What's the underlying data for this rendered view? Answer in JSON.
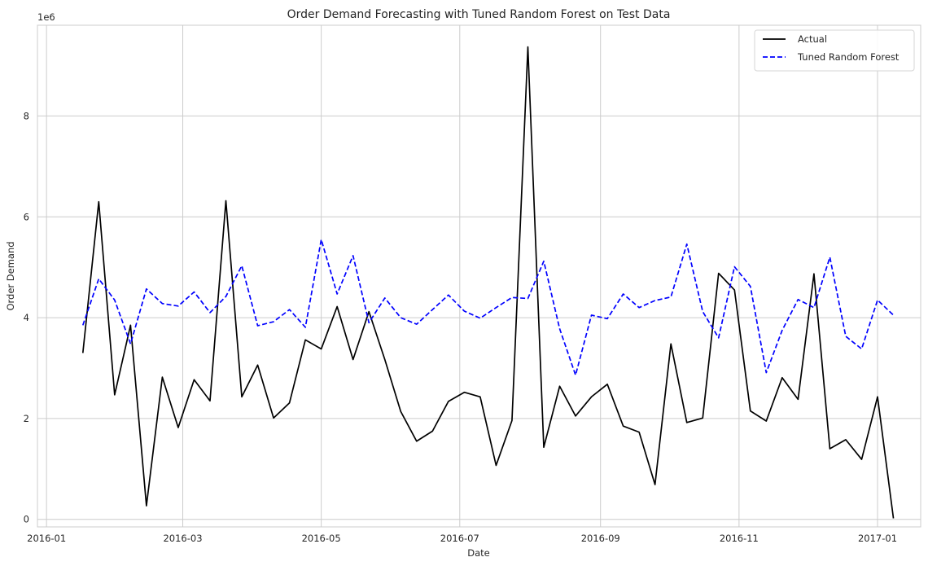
{
  "chart_data": {
    "type": "line",
    "title": "Order Demand Forecasting with Tuned Random Forest on Test Data",
    "xlabel": "Date",
    "ylabel": "Order Demand",
    "y_offset_text": "1e6",
    "xlim": [
      "2015-12-28",
      "2017-01-20"
    ],
    "ylim": [
      -0.15,
      9.8
    ],
    "y_scale_factor": 1000000,
    "x_ticks": [
      {
        "date": "2016-01-01",
        "label": "2016-01"
      },
      {
        "date": "2016-03-01",
        "label": "2016-03"
      },
      {
        "date": "2016-05-01",
        "label": "2016-05"
      },
      {
        "date": "2016-07-01",
        "label": "2016-07"
      },
      {
        "date": "2016-09-01",
        "label": "2016-09"
      },
      {
        "date": "2016-11-01",
        "label": "2016-11"
      },
      {
        "date": "2017-01-01",
        "label": "2017-01"
      }
    ],
    "y_ticks": [
      {
        "value": 0,
        "label": "0"
      },
      {
        "value": 2,
        "label": "2"
      },
      {
        "value": 4,
        "label": "4"
      },
      {
        "value": 6,
        "label": "6"
      },
      {
        "value": 8,
        "label": "8"
      }
    ],
    "grid": true,
    "legend": "top-right",
    "x": [
      "2016-01-17",
      "2016-01-24",
      "2016-01-31",
      "2016-02-07",
      "2016-02-14",
      "2016-02-21",
      "2016-02-28",
      "2016-03-06",
      "2016-03-13",
      "2016-03-20",
      "2016-03-27",
      "2016-04-03",
      "2016-04-10",
      "2016-04-17",
      "2016-04-24",
      "2016-05-01",
      "2016-05-08",
      "2016-05-15",
      "2016-05-22",
      "2016-05-29",
      "2016-06-05",
      "2016-06-12",
      "2016-06-19",
      "2016-06-26",
      "2016-07-03",
      "2016-07-10",
      "2016-07-17",
      "2016-07-24",
      "2016-07-31",
      "2016-08-07",
      "2016-08-14",
      "2016-08-21",
      "2016-08-28",
      "2016-09-04",
      "2016-09-11",
      "2016-09-18",
      "2016-09-25",
      "2016-10-02",
      "2016-10-09",
      "2016-10-16",
      "2016-10-23",
      "2016-10-30",
      "2016-11-06",
      "2016-11-13",
      "2016-11-20",
      "2016-11-27",
      "2016-12-04",
      "2016-12-11",
      "2016-12-18",
      "2016-12-25",
      "2017-01-01",
      "2017-01-08"
    ],
    "series": [
      {
        "name": "Actual",
        "color": "#000000",
        "dash": "solid",
        "values": [
          3.3,
          6.3,
          2.47,
          3.85,
          0.27,
          2.82,
          1.82,
          2.77,
          2.35,
          6.32,
          2.43,
          3.06,
          2.01,
          2.31,
          3.56,
          3.38,
          4.22,
          3.17,
          4.12,
          3.17,
          2.14,
          1.55,
          1.75,
          2.34,
          2.52,
          2.43,
          1.07,
          1.96,
          9.37,
          1.43,
          2.64,
          2.05,
          2.43,
          2.68,
          1.85,
          1.73,
          0.69,
          3.48,
          1.92,
          2.01,
          4.88,
          4.55,
          2.15,
          1.95,
          2.81,
          2.38,
          4.87,
          1.4,
          1.58,
          1.19,
          2.43,
          0.02
        ]
      },
      {
        "name": "Tuned Random Forest",
        "color": "#0000ff",
        "dash": "dashed",
        "values": [
          3.85,
          4.77,
          4.35,
          3.48,
          4.57,
          4.28,
          4.23,
          4.51,
          4.1,
          4.42,
          5.03,
          3.84,
          3.92,
          4.16,
          3.81,
          5.55,
          4.47,
          5.23,
          3.9,
          4.39,
          4.0,
          3.87,
          4.16,
          4.45,
          4.13,
          3.99,
          4.2,
          4.4,
          4.38,
          5.12,
          3.78,
          2.86,
          4.05,
          3.98,
          4.47,
          4.2,
          4.34,
          4.41,
          5.46,
          4.12,
          3.6,
          5.01,
          4.62,
          2.91,
          3.75,
          4.36,
          4.2,
          5.2,
          3.63,
          3.38,
          4.35,
          4.05
        ]
      }
    ]
  }
}
